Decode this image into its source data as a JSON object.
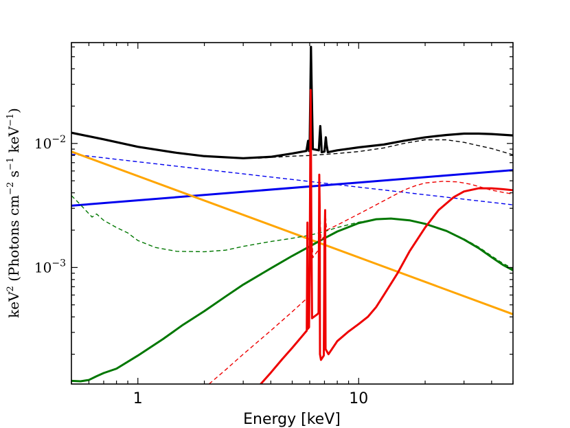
{
  "chart_data": {
    "type": "line",
    "title": "",
    "xlabel": "Energy [keV]",
    "ylabel": {
      "prefix": "keV",
      "prefix_sup": "2",
      "open": " (Photons cm",
      "sup1": "−2",
      "mid": " s",
      "sup2": "−1",
      "mid2": " keV",
      "sup3": "−1",
      "close": ")"
    },
    "xscale": "log",
    "yscale": "log",
    "xlim": [
      0.5,
      50
    ],
    "ylim": [
      0.000115,
      0.065
    ],
    "xticks": [
      {
        "value": 1,
        "label": "1"
      },
      {
        "value": 10,
        "label": "10"
      }
    ],
    "yticks": [
      {
        "value": 0.001,
        "base": "10",
        "exp": "−3"
      },
      {
        "value": 0.01,
        "base": "10",
        "exp": "−2"
      }
    ],
    "series": [
      {
        "name": "total",
        "color": "#000000",
        "style": "solid",
        "width": 3.2,
        "points": [
          [
            0.5,
            0.0122
          ],
          [
            0.7,
            0.0108
          ],
          [
            1,
            0.0094
          ],
          [
            1.5,
            0.0084
          ],
          [
            2,
            0.0079
          ],
          [
            3,
            0.0076
          ],
          [
            4,
            0.0078
          ],
          [
            5,
            0.0083
          ],
          [
            5.8,
            0.0087
          ],
          [
            5.9,
            0.0105
          ],
          [
            5.96,
            0.0087
          ],
          [
            6.0,
            0.01
          ],
          [
            6.05,
            0.03
          ],
          [
            6.08,
            0.06
          ],
          [
            6.12,
            0.03
          ],
          [
            6.2,
            0.009
          ],
          [
            6.6,
            0.0088
          ],
          [
            6.65,
            0.0112
          ],
          [
            6.7,
            0.0138
          ],
          [
            6.75,
            0.0112
          ],
          [
            6.8,
            0.0085
          ],
          [
            7.0,
            0.0086
          ],
          [
            7.05,
            0.0098
          ],
          [
            7.1,
            0.0112
          ],
          [
            7.15,
            0.0098
          ],
          [
            7.25,
            0.0085
          ],
          [
            8,
            0.0088
          ],
          [
            10,
            0.0093
          ],
          [
            13,
            0.0098
          ],
          [
            16,
            0.0105
          ],
          [
            20,
            0.0112
          ],
          [
            25,
            0.0117
          ],
          [
            30,
            0.012
          ],
          [
            35,
            0.012
          ],
          [
            40,
            0.0119
          ],
          [
            50,
            0.0116
          ]
        ]
      },
      {
        "name": "total-dashed",
        "color": "#000000",
        "style": "dashed",
        "width": 1.4,
        "points": [
          [
            3.5,
            0.0076
          ],
          [
            5,
            0.0079
          ],
          [
            6,
            0.008
          ],
          [
            8,
            0.0083
          ],
          [
            10,
            0.0086
          ],
          [
            13,
            0.0092
          ],
          [
            16,
            0.01
          ],
          [
            20,
            0.0107
          ],
          [
            25,
            0.0107
          ],
          [
            30,
            0.0102
          ],
          [
            40,
            0.0091
          ],
          [
            50,
            0.0081
          ]
        ]
      },
      {
        "name": "blue",
        "color": "#0000ee",
        "style": "solid",
        "width": 3,
        "points": [
          [
            0.5,
            0.00315
          ],
          [
            50,
            0.0061
          ]
        ]
      },
      {
        "name": "blue-dashed",
        "color": "#0000ee",
        "style": "dashed",
        "width": 1.4,
        "points": [
          [
            0.5,
            0.0082
          ],
          [
            50,
            0.0032
          ]
        ]
      },
      {
        "name": "orange",
        "color": "#ffa500",
        "style": "solid",
        "width": 3,
        "points": [
          [
            0.5,
            0.0086
          ],
          [
            50,
            0.00042
          ]
        ]
      },
      {
        "name": "green",
        "color": "#007700",
        "style": "solid",
        "width": 3,
        "points": [
          [
            0.5,
            0.000122
          ],
          [
            0.55,
            0.000121
          ],
          [
            0.6,
            0.000124
          ],
          [
            0.65,
            0.000133
          ],
          [
            0.7,
            0.000141
          ],
          [
            0.8,
            0.000153
          ],
          [
            1,
            0.000195
          ],
          [
            1.3,
            0.000265
          ],
          [
            1.6,
            0.000345
          ],
          [
            2,
            0.000445
          ],
          [
            2.5,
            0.000585
          ],
          [
            3,
            0.000728
          ],
          [
            4,
            0.000985
          ],
          [
            5,
            0.00124
          ],
          [
            6,
            0.00148
          ],
          [
            7,
            0.00172
          ],
          [
            8,
            0.00195
          ],
          [
            10,
            0.00228
          ],
          [
            12,
            0.00245
          ],
          [
            14,
            0.00248
          ],
          [
            17,
            0.0024
          ],
          [
            20,
            0.00225
          ],
          [
            25,
            0.00197
          ],
          [
            30,
            0.00168
          ],
          [
            35,
            0.00143
          ],
          [
            40,
            0.00121
          ],
          [
            45,
            0.00105
          ],
          [
            50,
            0.00095
          ]
        ]
      },
      {
        "name": "green-dashed",
        "color": "#007700",
        "style": "dashed",
        "width": 1.4,
        "points": [
          [
            0.5,
            0.0038
          ],
          [
            0.55,
            0.0032
          ],
          [
            0.62,
            0.00255
          ],
          [
            0.65,
            0.0027
          ],
          [
            0.7,
            0.0024
          ],
          [
            0.8,
            0.0021
          ],
          [
            0.9,
            0.0019
          ],
          [
            1.0,
            0.00165
          ],
          [
            1.2,
            0.00145
          ],
          [
            1.5,
            0.00135
          ],
          [
            2,
            0.00134
          ],
          [
            2.5,
            0.00138
          ],
          [
            3,
            0.00148
          ],
          [
            4,
            0.00162
          ],
          [
            5,
            0.00172
          ],
          [
            6,
            0.00182
          ],
          [
            7,
            0.00195
          ],
          [
            8,
            0.0021
          ],
          [
            10,
            0.00232
          ],
          [
            12,
            0.00244
          ],
          [
            14,
            0.00248
          ],
          [
            17,
            0.00241
          ],
          [
            20,
            0.00226
          ],
          [
            25,
            0.00198
          ],
          [
            30,
            0.0017
          ],
          [
            35,
            0.00146
          ],
          [
            40,
            0.00124
          ],
          [
            45,
            0.00108
          ],
          [
            50,
            0.00098
          ]
        ]
      },
      {
        "name": "red",
        "color": "#ee0000",
        "style": "solid",
        "width": 3,
        "points": [
          [
            3.6,
            0.000115
          ],
          [
            4,
            0.000142
          ],
          [
            4.5,
            0.000182
          ],
          [
            5,
            0.000225
          ],
          [
            5.5,
            0.000275
          ],
          [
            5.82,
            0.00031
          ],
          [
            5.86,
            0.0023
          ],
          [
            5.88,
            0.00032
          ],
          [
            5.96,
            0.00033
          ],
          [
            6.0,
            0.0011
          ],
          [
            6.06,
            0.027
          ],
          [
            6.1,
            0.0028
          ],
          [
            6.15,
            0.00039
          ],
          [
            6.5,
            0.00042
          ],
          [
            6.58,
            0.00043
          ],
          [
            6.63,
            0.0056
          ],
          [
            6.66,
            0.0031
          ],
          [
            6.68,
            0.0002
          ],
          [
            6.75,
            0.00018
          ],
          [
            6.95,
            0.000195
          ],
          [
            7.0,
            0.0015
          ],
          [
            7.05,
            0.0029
          ],
          [
            7.08,
            0.00022
          ],
          [
            7.3,
            0.0002
          ],
          [
            8,
            0.000255
          ],
          [
            9,
            0.000305
          ],
          [
            10,
            0.00035
          ],
          [
            11,
            0.0004
          ],
          [
            12,
            0.00048
          ],
          [
            13,
            0.0006
          ],
          [
            15,
            0.0009
          ],
          [
            17,
            0.00135
          ],
          [
            20,
            0.0021
          ],
          [
            23,
            0.0029
          ],
          [
            27,
            0.0037
          ],
          [
            30,
            0.0041
          ],
          [
            35,
            0.00435
          ],
          [
            40,
            0.00435
          ],
          [
            45,
            0.00428
          ],
          [
            50,
            0.0042
          ]
        ]
      },
      {
        "name": "red-dashed",
        "color": "#ee0000",
        "style": "dashed",
        "width": 1.4,
        "points": [
          [
            2.1,
            0.000115
          ],
          [
            2.5,
            0.00015
          ],
          [
            3,
            0.0002
          ],
          [
            4,
            0.00031
          ],
          [
            5,
            0.00044
          ],
          [
            5.8,
            0.00056
          ],
          [
            6.05,
            0.0011
          ],
          [
            6.1,
            0.0025
          ],
          [
            6.2,
            0.0012
          ],
          [
            6.6,
            0.0014
          ],
          [
            6.65,
            0.0035
          ],
          [
            6.75,
            0.00165
          ],
          [
            7.0,
            0.0018
          ],
          [
            7.05,
            0.003
          ],
          [
            7.15,
            0.002
          ],
          [
            8,
            0.0022
          ],
          [
            10,
            0.0027
          ],
          [
            12,
            0.0032
          ],
          [
            14,
            0.0037
          ],
          [
            16,
            0.0042
          ],
          [
            18,
            0.00455
          ],
          [
            20,
            0.0048
          ],
          [
            24,
            0.00495
          ],
          [
            28,
            0.0049
          ],
          [
            32,
            0.0047
          ],
          [
            40,
            0.0042
          ],
          [
            50,
            0.0039
          ]
        ]
      }
    ]
  }
}
